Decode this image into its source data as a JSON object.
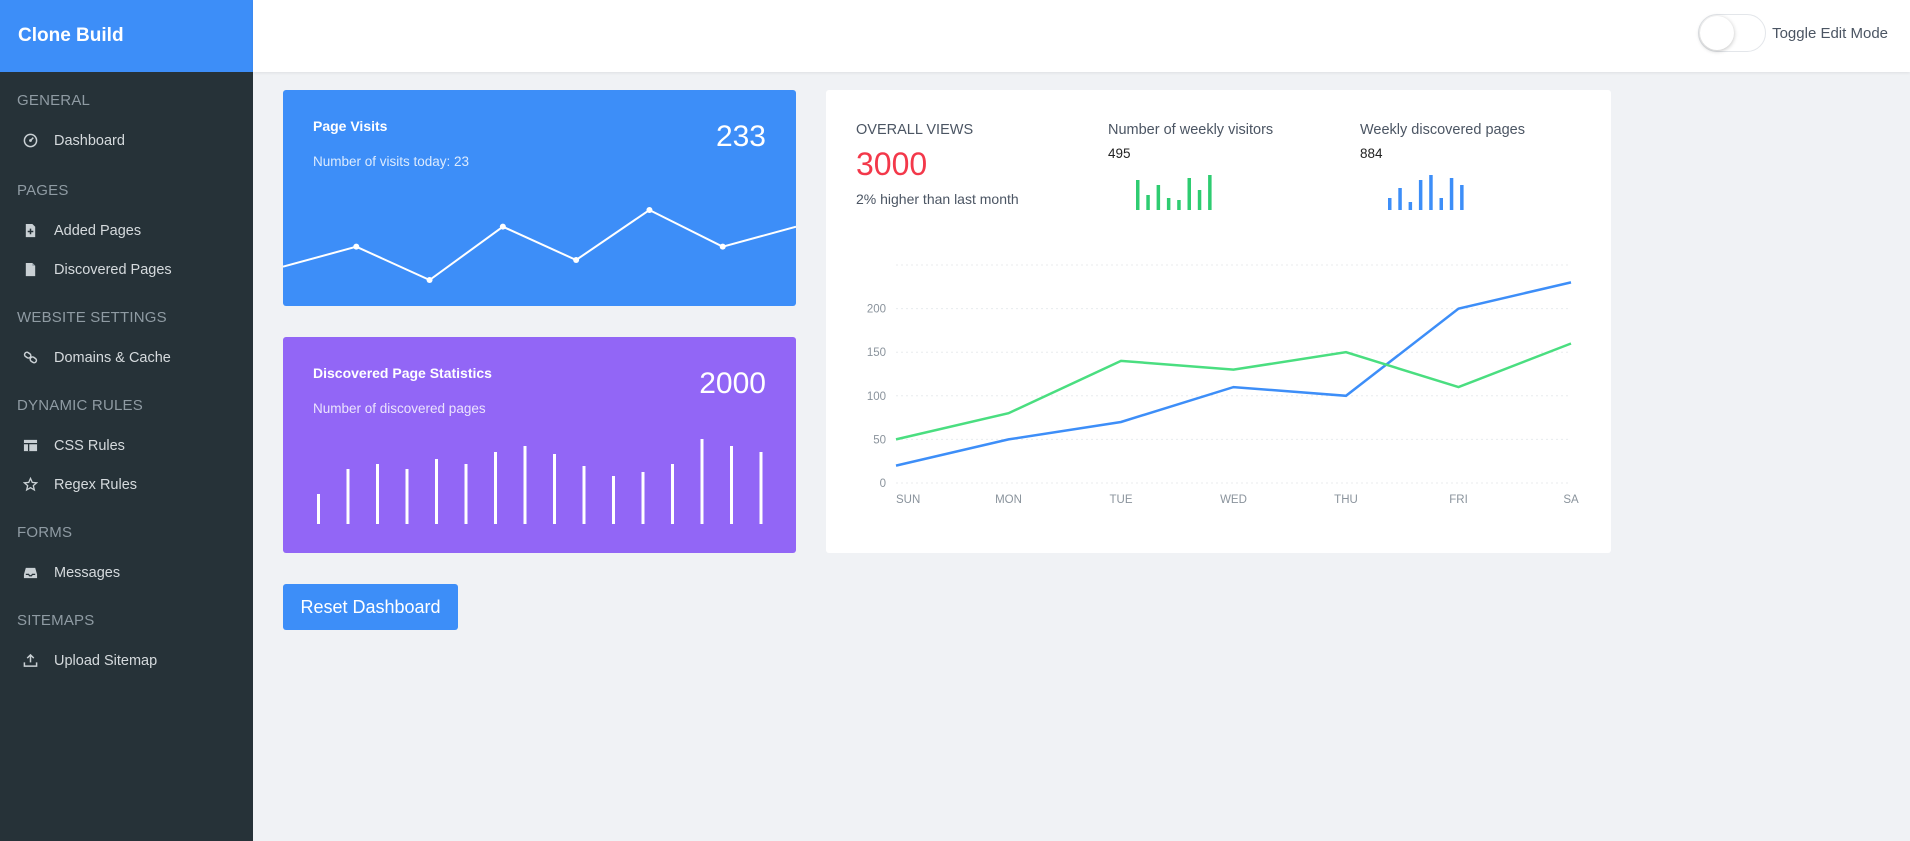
{
  "app": {
    "brand": "Clone Build",
    "accent": "#3d8ef8",
    "sidebar_bg": "#263238"
  },
  "sidebar": {
    "sections": [
      {
        "title": "GENERAL",
        "items": [
          {
            "label": "Dashboard",
            "icon": "dashboard-icon"
          }
        ]
      },
      {
        "title": "PAGES",
        "items": [
          {
            "label": "Added Pages",
            "icon": "file-plus-icon"
          },
          {
            "label": "Discovered Pages",
            "icon": "file-icon"
          }
        ]
      },
      {
        "title": "WEBSITE SETTINGS",
        "items": [
          {
            "label": "Domains & Cache",
            "icon": "link-icon"
          }
        ]
      },
      {
        "title": "DYNAMIC RULES",
        "items": [
          {
            "label": "CSS Rules",
            "icon": "table-icon"
          },
          {
            "label": "Regex Rules",
            "icon": "star-icon"
          }
        ]
      },
      {
        "title": "FORMS",
        "items": [
          {
            "label": "Messages",
            "icon": "inbox-icon"
          }
        ]
      },
      {
        "title": "SITEMAPS",
        "items": [
          {
            "label": "Upload Sitemap",
            "icon": "upload-icon"
          }
        ]
      }
    ]
  },
  "header": {
    "toggle_label": "Toggle Edit Mode",
    "toggle_on": false
  },
  "page_visits": {
    "title": "Page Visits",
    "subtitle": "Number of visits today: 23",
    "value": "233",
    "color": "#3d8ef8",
    "sparkline": [
      8,
      14,
      4,
      20,
      10,
      25,
      14,
      20
    ]
  },
  "discovered_stats": {
    "title": "Discovered Page Statistics",
    "subtitle": "Number of discovered pages",
    "value": "2000",
    "color": "#9266f6",
    "bars": [
      30,
      55,
      60,
      55,
      65,
      60,
      72,
      78,
      70,
      58,
      48,
      52,
      60,
      85,
      78,
      72
    ]
  },
  "reset_button": {
    "label": "Reset Dashboard"
  },
  "overview": {
    "overall_label": "OVERALL VIEWS",
    "overall_value": "3000",
    "overall_note": "2% higher than last month",
    "weekly_visitors_label": "Number of weekly visitors",
    "weekly_visitors_value": "495",
    "weekly_visitors_color": "#2ecc71",
    "weekly_visitors_bars": [
      30,
      15,
      25,
      12,
      10,
      32,
      20,
      35
    ],
    "weekly_pages_label": "Weekly discovered pages",
    "weekly_pages_value": "884",
    "weekly_pages_color": "#3d8ef8",
    "weekly_pages_bars": [
      12,
      22,
      8,
      30,
      35,
      12,
      32,
      25
    ]
  },
  "chart_data": {
    "type": "line",
    "categories": [
      "SUN",
      "MON",
      "TUE",
      "WED",
      "THU",
      "FRI",
      "SA"
    ],
    "series": [
      {
        "color": "#3d8ef8",
        "values": [
          20,
          50,
          70,
          110,
          100,
          200,
          230
        ]
      },
      {
        "color": "#4ade80",
        "values": [
          50,
          80,
          140,
          130,
          150,
          110,
          160
        ]
      }
    ],
    "yticks": [
      0,
      50,
      100,
      150,
      200
    ],
    "ylim": [
      0,
      250
    ],
    "grid": true
  }
}
